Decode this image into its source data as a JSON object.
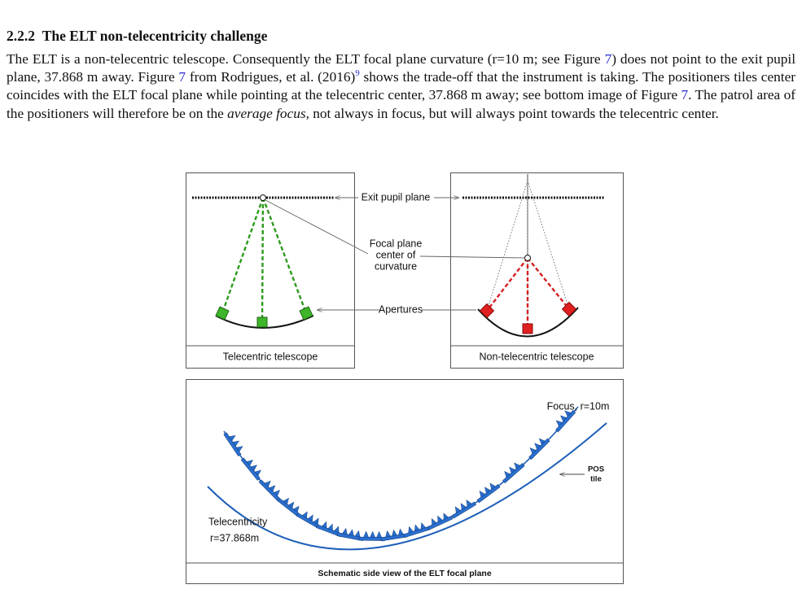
{
  "section": {
    "number": "2.2.2",
    "title": "The ELT non-telecentricity challenge"
  },
  "paragraph": [
    "The ELT is a non-telecentric telescope. Consequently the ELT focal plane curvature (r=10 m; see Figure ",
    "7",
    ") does not point to the exit pupil plane, 37.868 m away. Figure ",
    "7",
    " from Rodrigues, et al. (2016)",
    "9",
    " shows the trade-off that the instrument is taking. The positioners tiles center coincides with the ELT focal plane while pointing at the telecentric center, 37.868 m away; see bottom image of Figure ",
    "7",
    ". The patrol area of the positioners will therefore be on the ",
    "average focus",
    ", not always in focus, but will always point towards the telecentric center."
  ],
  "figure": {
    "captions": {
      "left": "Telecentric telescope",
      "right": "Non-telecentric telescope",
      "bottom": "Schematic side view of the ELT focal plane"
    },
    "labels": {
      "exit_pupil": "Exit pupil plane",
      "focal_center": [
        "Focal plane",
        "center of",
        "curvature"
      ],
      "apertures": "Apertures",
      "focus": "Focus, r=10m",
      "pos_tile": [
        "POS",
        "tile"
      ],
      "telecentricity": [
        "Telecentricity",
        "r=37.868m"
      ]
    }
  }
}
